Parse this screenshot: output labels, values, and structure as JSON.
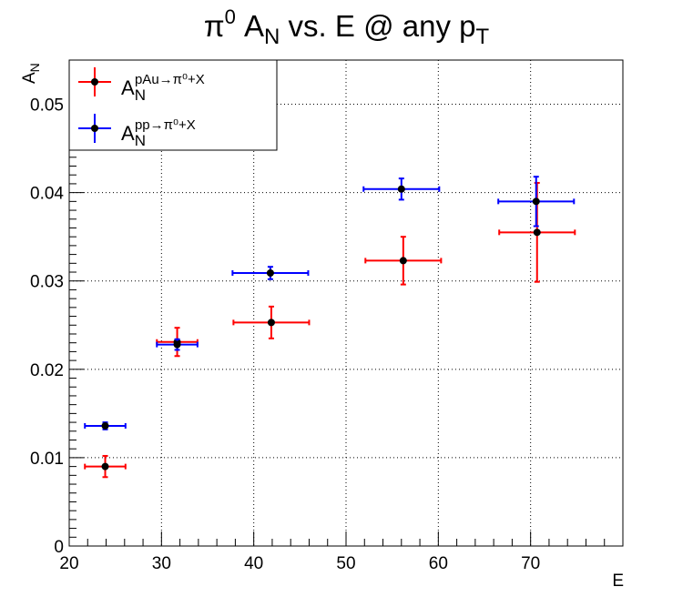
{
  "title_parts": {
    "pre": "π",
    "sup0": "0",
    "mid": " A",
    "sub": "N",
    "post": " vs. E @ any p",
    "sub2": "T"
  },
  "chart_data": {
    "type": "scatter",
    "xlabel": "E",
    "ylabel": {
      "main": "A",
      "sub": "N"
    },
    "xlim": [
      20,
      80
    ],
    "ylim": [
      0,
      0.055
    ],
    "x_ticks": [
      20,
      30,
      40,
      50,
      60,
      70
    ],
    "y_ticks": [
      0,
      0.01,
      0.02,
      0.03,
      0.04,
      0.05
    ],
    "x_tick_labels": [
      "20",
      "30",
      "40",
      "50",
      "60",
      "70"
    ],
    "y_tick_labels": [
      "0",
      "0.01",
      "0.02",
      "0.03",
      "0.04",
      "0.05"
    ],
    "grid": true,
    "legend_position": "top-left",
    "series": [
      {
        "label_main": "A",
        "label_sub": "N",
        "label_sup": "pAu→π⁰+X",
        "color": "#ff0000",
        "points": [
          {
            "x": 23.9,
            "y": 0.009,
            "xerr": 2.2,
            "yerr": 0.0012
          },
          {
            "x": 31.7,
            "y": 0.0231,
            "xerr": 2.2,
            "yerr": 0.0016
          },
          {
            "x": 41.9,
            "y": 0.0253,
            "xerr": 4.1,
            "yerr": 0.0018
          },
          {
            "x": 56.2,
            "y": 0.0323,
            "xerr": 4.1,
            "yerr": 0.0027
          },
          {
            "x": 70.7,
            "y": 0.0355,
            "xerr": 4.1,
            "yerr": 0.0056
          }
        ]
      },
      {
        "label_main": "A",
        "label_sub": "N",
        "label_sup": "pp→π⁰+X",
        "color": "#0000ff",
        "points": [
          {
            "x": 23.9,
            "y": 0.0136,
            "xerr": 2.2,
            "yerr": 0.0004
          },
          {
            "x": 31.7,
            "y": 0.0228,
            "xerr": 2.2,
            "yerr": 0.0006
          },
          {
            "x": 41.8,
            "y": 0.0309,
            "xerr": 4.1,
            "yerr": 0.0007
          },
          {
            "x": 56.0,
            "y": 0.0404,
            "xerr": 4.1,
            "yerr": 0.0012
          },
          {
            "x": 70.6,
            "y": 0.039,
            "xerr": 4.1,
            "yerr": 0.0028
          }
        ]
      }
    ]
  }
}
